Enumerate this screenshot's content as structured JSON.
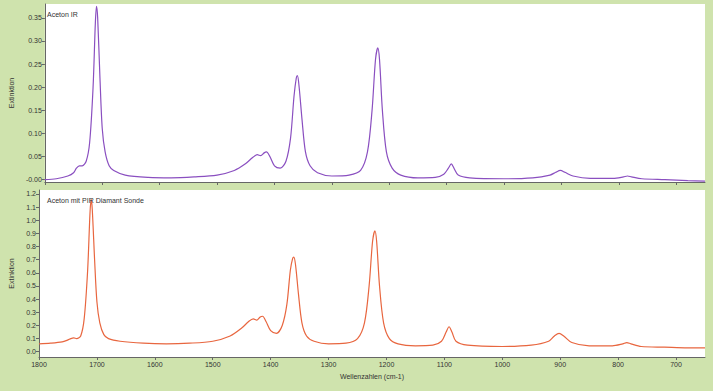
{
  "chart_data": [
    {
      "type": "line",
      "title": "Aceton IR",
      "y_label": "Extinktion",
      "color": "#8a4fc0",
      "x": [
        1800,
        1780,
        1760,
        1750,
        1745,
        1740,
        1735,
        1728,
        1722,
        1716,
        1712,
        1710,
        1708,
        1704,
        1700,
        1695,
        1688,
        1680,
        1660,
        1620,
        1580,
        1540,
        1500,
        1470,
        1450,
        1438,
        1430,
        1424,
        1418,
        1414,
        1408,
        1400,
        1390,
        1380,
        1372,
        1366,
        1362,
        1360,
        1357,
        1352,
        1346,
        1338,
        1325,
        1300,
        1270,
        1250,
        1238,
        1230,
        1224,
        1220,
        1217,
        1212,
        1205,
        1195,
        1180,
        1150,
        1120,
        1105,
        1097,
        1092,
        1087,
        1080,
        1060,
        1000,
        950,
        920,
        910,
        902,
        894,
        880,
        850,
        810,
        792,
        785,
        778,
        760,
        720,
        680,
        650
      ],
      "values": [
        0,
        0.002,
        0.008,
        0.015,
        0.025,
        0.03,
        0.03,
        0.04,
        0.08,
        0.2,
        0.34,
        0.375,
        0.35,
        0.22,
        0.11,
        0.06,
        0.03,
        0.02,
        0.01,
        0.005,
        0.004,
        0.006,
        0.01,
        0.02,
        0.035,
        0.048,
        0.054,
        0.052,
        0.058,
        0.06,
        0.05,
        0.03,
        0.025,
        0.04,
        0.09,
        0.18,
        0.22,
        0.225,
        0.2,
        0.13,
        0.06,
        0.03,
        0.015,
        0.008,
        0.01,
        0.02,
        0.06,
        0.15,
        0.26,
        0.285,
        0.26,
        0.15,
        0.06,
        0.025,
        0.01,
        0.004,
        0.005,
        0.012,
        0.025,
        0.034,
        0.024,
        0.01,
        0.004,
        0.002,
        0.004,
        0.01,
        0.016,
        0.02,
        0.016,
        0.008,
        0.003,
        0.003,
        0.006,
        0.008,
        0.006,
        0.002,
        0,
        -0.002,
        -0.003
      ],
      "xlim": [
        1800,
        650
      ],
      "xticks": [
        1800,
        1700,
        1600,
        1500,
        1400,
        1300,
        1200,
        1100,
        1000,
        900,
        800,
        700
      ],
      "ylim": [
        -0.005,
        0.38
      ],
      "yticks": [
        {
          "value": 0,
          "label": "-0.00"
        },
        0.05,
        {
          "value": 0.1,
          "label": "0.10"
        },
        0.15,
        {
          "value": 0.2,
          "label": "0.20"
        },
        0.25,
        {
          "value": 0.3,
          "label": "0.30"
        },
        0.35
      ],
      "tick_labels": "y",
      "grid": false
    },
    {
      "type": "line",
      "title": "Aceton mit PIR Diamant Sonde",
      "x_label": "Wellenzahlen (cm-1)",
      "y_label": "Extinktion",
      "color": "#e8663f",
      "x": [
        1800,
        1780,
        1760,
        1750,
        1745,
        1740,
        1735,
        1728,
        1722,
        1716,
        1712,
        1710,
        1708,
        1704,
        1700,
        1695,
        1688,
        1680,
        1660,
        1620,
        1580,
        1540,
        1500,
        1470,
        1450,
        1438,
        1430,
        1424,
        1418,
        1414,
        1408,
        1400,
        1390,
        1380,
        1372,
        1366,
        1362,
        1360,
        1357,
        1352,
        1346,
        1338,
        1325,
        1300,
        1270,
        1250,
        1238,
        1230,
        1224,
        1220,
        1217,
        1212,
        1205,
        1195,
        1180,
        1150,
        1120,
        1105,
        1097,
        1092,
        1087,
        1080,
        1060,
        1000,
        950,
        920,
        910,
        902,
        894,
        880,
        850,
        810,
        792,
        785,
        778,
        760,
        720,
        680,
        650
      ],
      "values": [
        0.06,
        0.065,
        0.075,
        0.09,
        0.1,
        0.105,
        0.1,
        0.12,
        0.25,
        0.62,
        1.05,
        1.16,
        1.08,
        0.7,
        0.38,
        0.22,
        0.13,
        0.1,
        0.08,
        0.065,
        0.06,
        0.065,
        0.08,
        0.12,
        0.18,
        0.23,
        0.25,
        0.24,
        0.265,
        0.27,
        0.23,
        0.16,
        0.14,
        0.2,
        0.36,
        0.62,
        0.71,
        0.72,
        0.66,
        0.44,
        0.22,
        0.12,
        0.08,
        0.06,
        0.065,
        0.1,
        0.22,
        0.5,
        0.84,
        0.92,
        0.84,
        0.5,
        0.22,
        0.1,
        0.06,
        0.045,
        0.05,
        0.08,
        0.15,
        0.19,
        0.15,
        0.08,
        0.05,
        0.04,
        0.05,
        0.08,
        0.12,
        0.14,
        0.12,
        0.07,
        0.045,
        0.045,
        0.06,
        0.07,
        0.06,
        0.04,
        0.035,
        0.03,
        0.03
      ],
      "xlim": [
        1800,
        650
      ],
      "xticks": [
        1800,
        1700,
        1600,
        1500,
        1400,
        1300,
        1200,
        1100,
        1000,
        900,
        800,
        700
      ],
      "ylim": [
        -0.04,
        1.23
      ],
      "yticks": [
        {
          "value": 0,
          "label": "0.0"
        },
        0.1,
        0.2,
        0.3,
        0.4,
        0.5,
        0.6,
        0.7,
        0.8,
        0.9,
        {
          "value": 1,
          "label": "1.0"
        },
        1.1,
        1.2
      ],
      "grid": false
    }
  ]
}
